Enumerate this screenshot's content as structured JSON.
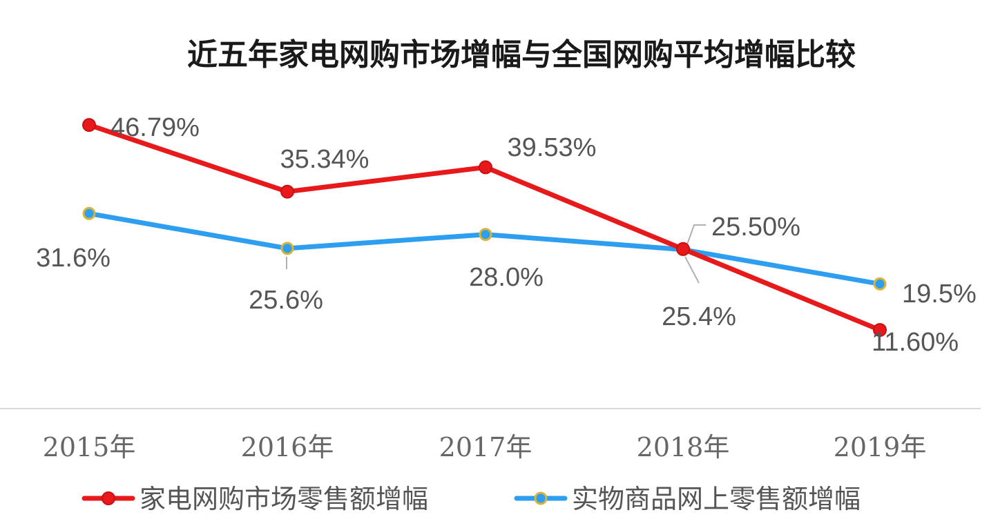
{
  "chart_data": {
    "type": "line",
    "title": "近五年家电网购市场增幅与全国网购平均增幅比较",
    "categories": [
      "2015年",
      "2016年",
      "2017年",
      "2018年",
      "2019年"
    ],
    "series": [
      {
        "name": "家电网购市场零售额增幅",
        "values": [
          46.79,
          35.34,
          39.53,
          25.5,
          11.6
        ],
        "labels": [
          "46.79%",
          "35.34%",
          "39.53%",
          "25.50%",
          "11.60%"
        ],
        "color": "#e8191b",
        "marker_color": "#e8191b"
      },
      {
        "name": "实物商品网上零售额增幅",
        "values": [
          31.6,
          25.6,
          28.0,
          25.4,
          19.5
        ],
        "labels": [
          "31.6%",
          "25.6%",
          "28.0%",
          "25.4%",
          "19.5%"
        ],
        "color": "#2e9ef0",
        "marker_color": "#2e9ef0",
        "marker_stroke": "#d8b43a"
      }
    ],
    "ylim": [
      0,
      50
    ],
    "grid": false,
    "legend": "bottom"
  }
}
